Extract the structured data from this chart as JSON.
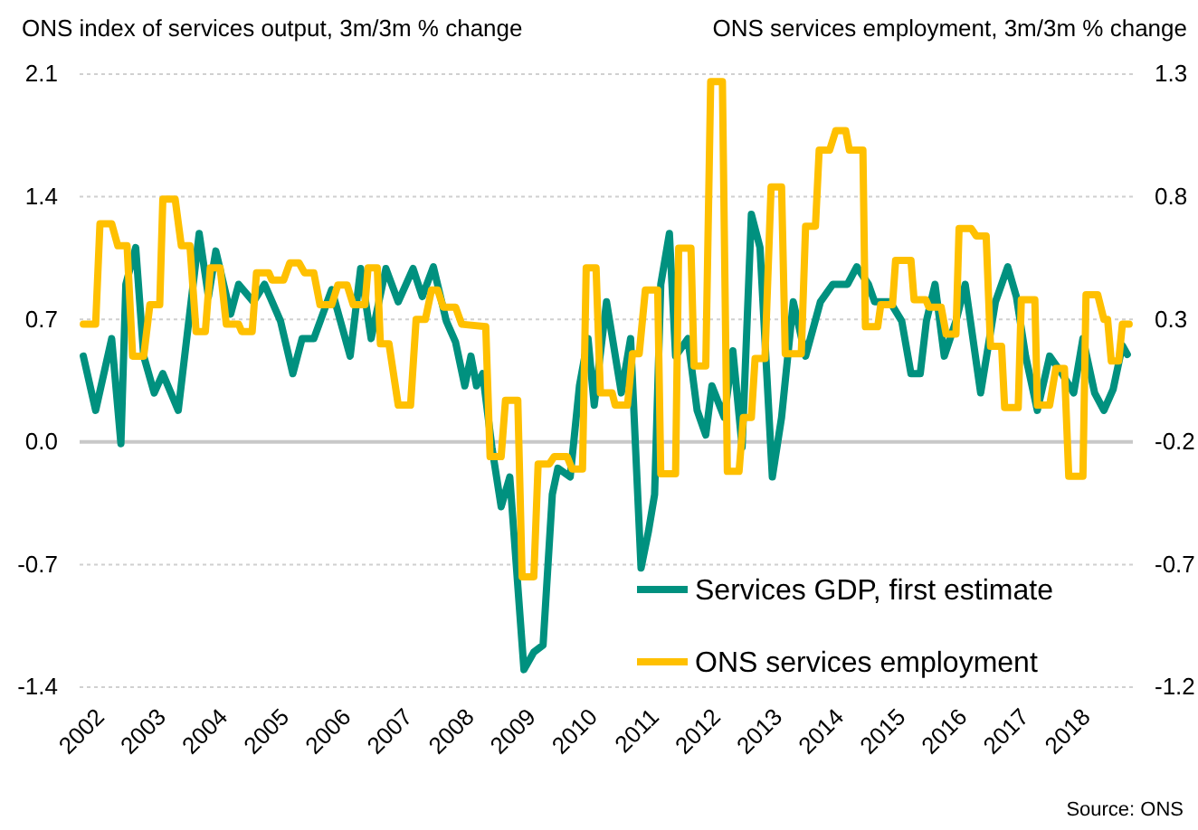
{
  "chart_data": {
    "type": "line",
    "ylabel": "ONS index of services output, 3m/3m % change",
    "y2label": "ONS services employment, 3m/3m % change",
    "annotations": [
      "Source: ONS"
    ],
    "xlim": [
      2001.85,
      2018.94
    ],
    "xticks": [
      {
        "value": 2002,
        "label": "2002"
      },
      {
        "value": 2003,
        "label": "2003"
      },
      {
        "value": 2004,
        "label": "2004"
      },
      {
        "value": 2005,
        "label": "2005"
      },
      {
        "value": 2006,
        "label": "2006"
      },
      {
        "value": 2007,
        "label": "2007"
      },
      {
        "value": 2008,
        "label": "2008"
      },
      {
        "value": 2009,
        "label": "2009"
      },
      {
        "value": 2010,
        "label": "2010"
      },
      {
        "value": 2011,
        "label": "2011"
      },
      {
        "value": 2012,
        "label": "2012"
      },
      {
        "value": 2013,
        "label": "2013"
      },
      {
        "value": 2014,
        "label": "2014"
      },
      {
        "value": 2015,
        "label": "2015"
      },
      {
        "value": 2016,
        "label": "2016"
      },
      {
        "value": 2017,
        "label": "2017"
      },
      {
        "value": 2018,
        "label": "2018"
      }
    ],
    "ylim": [
      -1.4,
      2.1
    ],
    "yticks": [
      -1.4,
      -0.7,
      {
        "value": 0,
        "label": "0.0"
      },
      0.7,
      1.4,
      2.1
    ],
    "y2lim": [
      -1.2,
      1.3
    ],
    "y2ticks": [
      -1.2,
      -0.7,
      -0.2,
      0.3,
      0.8,
      1.3
    ],
    "grid": "y",
    "legend": "bottom right",
    "line_style": "solid",
    "series": [
      {
        "name": "Services GDP, first estimate",
        "color": "#00917f",
        "x": [
          2001.91,
          2002.11,
          2002.37,
          2002.52,
          2002.6,
          2002.76,
          2002.89,
          2003.06,
          2003.2,
          2003.45,
          2003.79,
          2003.94,
          2004.06,
          2004.3,
          2004.43,
          2004.67,
          2004.85,
          2005.11,
          2005.31,
          2005.46,
          2005.65,
          2005.94,
          2006.24,
          2006.41,
          2006.58,
          2006.82,
          2007.02,
          2007.26,
          2007.41,
          2007.59,
          2007.8,
          2007.95,
          2008.1,
          2008.2,
          2008.29,
          2008.39,
          2008.54,
          2008.69,
          2008.83,
          2009.06,
          2009.22,
          2009.37,
          2009.52,
          2009.61,
          2009.81,
          2009.96,
          2010.1,
          2010.2,
          2010.4,
          2010.64,
          2010.79,
          2010.96,
          2011.08,
          2011.18,
          2011.28,
          2011.42,
          2011.52,
          2011.72,
          2011.87,
          2012.01,
          2012.11,
          2012.31,
          2012.45,
          2012.6,
          2012.75,
          2012.89,
          2013.09,
          2013.24,
          2013.43,
          2013.63,
          2013.87,
          2014.07,
          2014.31,
          2014.46,
          2014.65,
          2014.75,
          2015.0,
          2015.19,
          2015.34,
          2015.49,
          2015.59,
          2015.73,
          2015.88,
          2016.07,
          2016.22,
          2016.47,
          2016.71,
          2016.91,
          2017.05,
          2017.2,
          2017.39,
          2017.59,
          2017.79,
          2017.98,
          2018.13,
          2018.32,
          2018.47,
          2018.62,
          2018.77,
          2018.85
        ],
        "values": [
          0.49,
          0.18,
          0.59,
          -0.01,
          0.9,
          1.11,
          0.49,
          0.28,
          0.39,
          0.18,
          1.19,
          0.83,
          1.09,
          0.73,
          0.9,
          0.8,
          0.9,
          0.69,
          0.39,
          0.59,
          0.59,
          0.87,
          0.49,
          0.99,
          0.59,
          0.99,
          0.8,
          0.99,
          0.83,
          1.0,
          0.69,
          0.57,
          0.32,
          0.49,
          0.32,
          0.39,
          -0.03,
          -0.37,
          -0.2,
          -1.3,
          -1.2,
          -1.16,
          -0.3,
          -0.15,
          -0.2,
          0.32,
          0.59,
          0.21,
          0.8,
          0.28,
          0.59,
          -0.72,
          -0.51,
          -0.3,
          0.9,
          1.19,
          0.49,
          0.59,
          0.18,
          0.04,
          0.32,
          0.14,
          0.52,
          -0.03,
          1.3,
          1.11,
          -0.2,
          0.14,
          0.8,
          0.49,
          0.8,
          0.9,
          0.9,
          1.0,
          0.9,
          0.8,
          0.8,
          0.69,
          0.39,
          0.39,
          0.69,
          0.9,
          0.49,
          0.69,
          0.9,
          0.28,
          0.8,
          1.0,
          0.83,
          0.49,
          0.18,
          0.49,
          0.39,
          0.28,
          0.59,
          0.28,
          0.18,
          0.3,
          0.55,
          0.5
        ]
      },
      {
        "name": "ONS services employment",
        "color": "#ffc000",
        "axis": "y2",
        "x": [
          2001.91,
          2002.11,
          2002.18,
          2002.37,
          2002.47,
          2002.62,
          2002.71,
          2002.89,
          2002.99,
          2003.15,
          2003.2,
          2003.4,
          2003.5,
          2003.64,
          2003.74,
          2003.89,
          2003.97,
          2004.13,
          2004.23,
          2004.43,
          2004.48,
          2004.65,
          2004.72,
          2004.92,
          2004.97,
          2005.16,
          2005.26,
          2005.41,
          2005.5,
          2005.65,
          2005.75,
          2005.94,
          2006.04,
          2006.19,
          2006.29,
          2006.48,
          2006.53,
          2006.68,
          2006.73,
          2006.87,
          2007.02,
          2007.22,
          2007.31,
          2007.46,
          2007.56,
          2007.66,
          2007.75,
          2007.95,
          2008.05,
          2008.44,
          2008.51,
          2008.69,
          2008.76,
          2008.96,
          2009.03,
          2009.22,
          2009.29,
          2009.47,
          2009.55,
          2009.76,
          2009.84,
          2010.01,
          2010.07,
          2010.23,
          2010.3,
          2010.49,
          2010.54,
          2010.74,
          2010.82,
          2010.93,
          2011.03,
          2011.23,
          2011.28,
          2011.52,
          2011.57,
          2011.77,
          2011.82,
          2012.01,
          2012.09,
          2012.28,
          2012.36,
          2012.55,
          2012.62,
          2012.75,
          2012.81,
          2012.97,
          2013.07,
          2013.24,
          2013.3,
          2013.56,
          2013.63,
          2013.79,
          2013.85,
          2014.02,
          2014.12,
          2014.28,
          2014.34,
          2014.56,
          2014.6,
          2014.8,
          2014.85,
          2015.04,
          2015.09,
          2015.34,
          2015.39,
          2015.58,
          2015.63,
          2015.83,
          2015.91,
          2016.07,
          2016.12,
          2016.32,
          2016.4,
          2016.56,
          2016.63,
          2016.81,
          2016.86,
          2017.08,
          2017.13,
          2017.35,
          2017.39,
          2017.59,
          2017.69,
          2017.83,
          2017.9,
          2018.13,
          2018.18,
          2018.37,
          2018.47,
          2018.53,
          2018.59,
          2018.71,
          2018.77,
          2018.88
        ],
        "values": [
          0.28,
          0.28,
          0.69,
          0.69,
          0.6,
          0.6,
          0.15,
          0.15,
          0.36,
          0.36,
          0.79,
          0.79,
          0.6,
          0.6,
          0.25,
          0.25,
          0.51,
          0.51,
          0.28,
          0.28,
          0.25,
          0.25,
          0.49,
          0.49,
          0.46,
          0.46,
          0.53,
          0.53,
          0.49,
          0.49,
          0.36,
          0.36,
          0.44,
          0.44,
          0.36,
          0.36,
          0.51,
          0.51,
          0.2,
          0.2,
          -0.05,
          -0.05,
          0.3,
          0.3,
          0.42,
          0.42,
          0.35,
          0.35,
          0.28,
          0.27,
          -0.26,
          -0.26,
          -0.03,
          -0.03,
          -0.75,
          -0.75,
          -0.29,
          -0.29,
          -0.26,
          -0.26,
          -0.31,
          -0.31,
          0.51,
          0.51,
          0.0,
          0.0,
          -0.05,
          -0.05,
          0.16,
          0.16,
          0.42,
          0.42,
          -0.33,
          -0.33,
          0.59,
          0.59,
          0.11,
          0.11,
          1.27,
          1.27,
          -0.32,
          -0.32,
          -0.1,
          -0.1,
          0.14,
          0.14,
          0.84,
          0.84,
          0.16,
          0.16,
          0.68,
          0.68,
          0.99,
          0.99,
          1.07,
          1.07,
          0.99,
          0.99,
          0.27,
          0.27,
          0.36,
          0.36,
          0.54,
          0.54,
          0.38,
          0.38,
          0.35,
          0.35,
          0.24,
          0.24,
          0.67,
          0.67,
          0.64,
          0.64,
          0.19,
          0.19,
          -0.06,
          -0.06,
          0.38,
          0.38,
          -0.05,
          -0.05,
          0.1,
          0.1,
          -0.34,
          -0.34,
          0.4,
          0.4,
          0.3,
          0.3,
          0.13,
          0.13,
          0.28,
          0.28
        ]
      }
    ]
  }
}
